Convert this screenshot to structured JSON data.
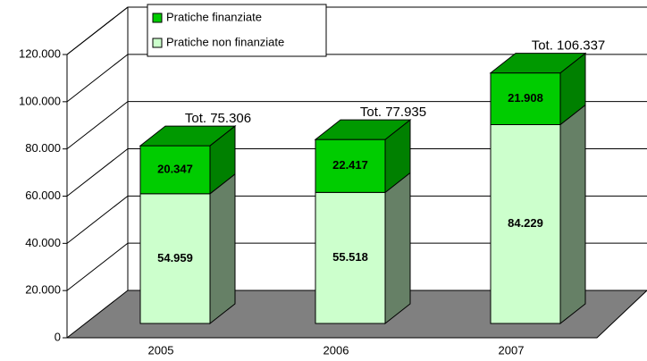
{
  "chart_data": {
    "type": "bar3d_stacked",
    "categories": [
      "2005",
      "2006",
      "2007"
    ],
    "series": [
      {
        "name": "Pratiche non finanziate",
        "color": "#ccffcc",
        "side_color": "#668066",
        "values": [
          54959,
          55518,
          84229
        ],
        "value_labels": [
          "54.959",
          "55.518",
          "84.229"
        ]
      },
      {
        "name": "Pratiche finanziate",
        "color": "#00cc00",
        "side_color": "#008000",
        "top_color": "#009900",
        "values": [
          20347,
          22417,
          21908
        ],
        "value_labels": [
          "20.347",
          "22.417",
          "21.908"
        ]
      }
    ],
    "total_labels": [
      "Tot. 75.306",
      "Tot. 77.935",
      "Tot. 106.337"
    ],
    "ylim": [
      0,
      120000
    ],
    "yticks": [
      0,
      {
        "value": 20000,
        "label": "20.000"
      },
      {
        "value": 40000,
        "label": "40.000"
      },
      {
        "value": 60000,
        "label": "60.000"
      },
      {
        "value": 80000,
        "label": "80.000"
      },
      {
        "value": 100000,
        "label": "100.000"
      },
      {
        "value": 120000,
        "label": "120.000"
      }
    ],
    "grid": true,
    "legend": "top-left"
  }
}
